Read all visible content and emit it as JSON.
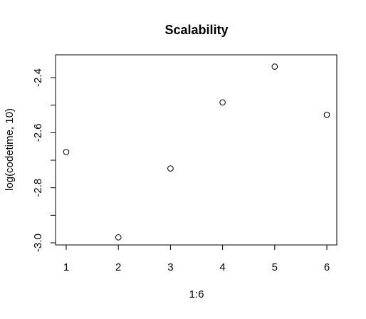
{
  "chart_data": {
    "type": "scatter",
    "title": "Scalability",
    "xlabel": "1:6",
    "ylabel": "log(codetime, 10)",
    "xlim": [
      1,
      6
    ],
    "ylim": [
      -3.0,
      -2.4
    ],
    "xticks": [
      1,
      2,
      3,
      4,
      5,
      6
    ],
    "xtick_labels": [
      "1",
      "2",
      "3",
      "4",
      "5",
      "6"
    ],
    "yticks": [
      -3.0,
      -2.8,
      -2.6,
      -2.4
    ],
    "ytick_labels": [
      "-3.0",
      "-2.8",
      "-2.6",
      "-2.4"
    ],
    "grid": false,
    "points": [
      {
        "x": 1,
        "y": -2.67
      },
      {
        "x": 2,
        "y": -2.98
      },
      {
        "x": 3,
        "y": -2.73
      },
      {
        "x": 4,
        "y": -2.49
      },
      {
        "x": 5,
        "y": -2.36
      },
      {
        "x": 6,
        "y": -2.535
      }
    ]
  }
}
